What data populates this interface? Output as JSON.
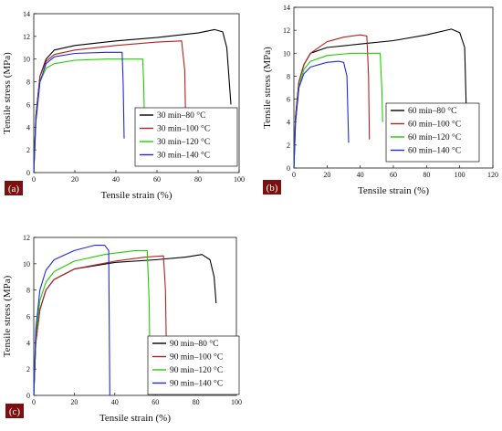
{
  "colors": {
    "s80": "#000000",
    "s100": "#b22222",
    "s120": "#22cc00",
    "s140": "#1a2be0",
    "panel_label_bg": "#7a1010"
  },
  "chart_data": [
    {
      "type": "line",
      "panel_label": "(a)",
      "xlabel": "Tensile strain (%)",
      "ylabel": "Tensile stress (MPa)",
      "xlim": [
        0,
        100
      ],
      "ylim": [
        0,
        14
      ],
      "xticks": [
        "0",
        "20",
        "40",
        "60",
        "80",
        "100"
      ],
      "yticks": [
        "0",
        "2",
        "4",
        "6",
        "8",
        "10",
        "12",
        "14"
      ],
      "legend_position": "bottom-right",
      "series": [
        {
          "name": "30 min–80 °C",
          "color": "#000000",
          "x": [
            0,
            1,
            3,
            6,
            10,
            20,
            40,
            60,
            80,
            88,
            92,
            94,
            96
          ],
          "y": [
            0,
            5,
            8.5,
            10,
            10.8,
            11.2,
            11.6,
            11.9,
            12.3,
            12.6,
            12.4,
            11,
            6
          ]
        },
        {
          "name": "30 min–100 °C",
          "color": "#b22222",
          "x": [
            0,
            1,
            3,
            6,
            10,
            20,
            40,
            60,
            72,
            73.5,
            74
          ],
          "y": [
            0,
            5,
            8.5,
            9.8,
            10.4,
            10.8,
            11.2,
            11.5,
            11.6,
            9,
            4
          ]
        },
        {
          "name": "30 min–120 °C",
          "color": "#22cc00",
          "x": [
            0,
            1,
            3,
            6,
            10,
            20,
            35,
            45,
            53,
            53.5,
            54
          ],
          "y": [
            0,
            4.5,
            8,
            9.2,
            9.6,
            9.9,
            10,
            10,
            10,
            8,
            3.5
          ]
        },
        {
          "name": "30 min–140 °C",
          "color": "#1a2be0",
          "x": [
            0,
            1,
            3,
            6,
            10,
            20,
            35,
            43,
            43.5,
            44
          ],
          "y": [
            0,
            4.5,
            8,
            9.6,
            10.2,
            10.5,
            10.6,
            10.6,
            8,
            3
          ]
        }
      ]
    },
    {
      "type": "line",
      "panel_label": "(b)",
      "xlabel": "Tensile strain (%)",
      "ylabel": "Tensile stress (MPa)",
      "xlim": [
        0,
        120
      ],
      "ylim": [
        0,
        14
      ],
      "xticks": [
        "0",
        "20",
        "40",
        "60",
        "80",
        "100",
        "120"
      ],
      "yticks": [
        "0",
        "2",
        "4",
        "6",
        "8",
        "10",
        "12",
        "14"
      ],
      "legend_position": "bottom-right",
      "series": [
        {
          "name": "60 min–80 °C",
          "color": "#000000",
          "x": [
            0,
            1,
            3,
            6,
            10,
            20,
            40,
            60,
            80,
            95,
            100,
            103,
            104
          ],
          "y": [
            0,
            4.5,
            7.5,
            9,
            10,
            10.5,
            10.8,
            11.1,
            11.6,
            12.1,
            11.8,
            10.5,
            5
          ]
        },
        {
          "name": "60 min–100 °C",
          "color": "#b22222",
          "x": [
            0,
            1,
            3,
            6,
            10,
            20,
            30,
            40,
            44,
            45,
            45.5
          ],
          "y": [
            0,
            4.5,
            7.5,
            9,
            10,
            11,
            11.4,
            11.6,
            11.5,
            8,
            2.5
          ]
        },
        {
          "name": "60 min–120 °C",
          "color": "#22cc00",
          "x": [
            0,
            1,
            3,
            6,
            10,
            20,
            35,
            45,
            52,
            53,
            53.5
          ],
          "y": [
            0,
            4,
            7,
            8.6,
            9.3,
            9.8,
            10,
            10,
            10,
            7,
            4
          ]
        },
        {
          "name": "60 min–140 °C",
          "color": "#1a2be0",
          "x": [
            0,
            1,
            3,
            6,
            10,
            20,
            27,
            30,
            32,
            33
          ],
          "y": [
            0,
            4,
            7,
            8.2,
            8.8,
            9.2,
            9.3,
            9.2,
            8,
            2.2
          ]
        }
      ]
    },
    {
      "type": "line",
      "panel_label": "(c)",
      "xlabel": "Tensile strain (%)",
      "ylabel": "Tensile stress (MPa)",
      "xlim": [
        0,
        100
      ],
      "ylim": [
        0,
        12
      ],
      "xticks": [
        "0",
        "20",
        "40",
        "60",
        "80",
        "100"
      ],
      "yticks": [
        "0",
        "2",
        "4",
        "6",
        "8",
        "10",
        "12"
      ],
      "legend_position": "bottom-right",
      "series": [
        {
          "name": "90 min–80 °C",
          "color": "#000000",
          "x": [
            0,
            1,
            3,
            6,
            10,
            20,
            40,
            60,
            75,
            83,
            87,
            89,
            90
          ],
          "y": [
            0,
            4,
            6.5,
            8,
            8.8,
            9.6,
            10.1,
            10.3,
            10.5,
            10.7,
            10.3,
            9,
            7
          ]
        },
        {
          "name": "90 min–100 °C",
          "color": "#b22222",
          "x": [
            0,
            1,
            3,
            6,
            10,
            20,
            40,
            55,
            64,
            65,
            65.5
          ],
          "y": [
            0,
            4,
            6.5,
            8,
            8.8,
            9.6,
            10.2,
            10.5,
            10.6,
            8,
            3
          ]
        },
        {
          "name": "90 min–120 °C",
          "color": "#22cc00",
          "x": [
            0,
            1,
            3,
            6,
            10,
            20,
            35,
            50,
            56,
            57,
            57.5
          ],
          "y": [
            0,
            4.5,
            7.2,
            8.6,
            9.4,
            10.2,
            10.7,
            11,
            11,
            7,
            0
          ]
        },
        {
          "name": "90 min–140 °C",
          "color": "#1a2be0",
          "x": [
            0,
            1,
            3,
            6,
            10,
            20,
            30,
            35,
            37,
            37.5
          ],
          "y": [
            0,
            5,
            8,
            9.5,
            10.3,
            11,
            11.4,
            11.4,
            11,
            0
          ]
        }
      ]
    }
  ]
}
